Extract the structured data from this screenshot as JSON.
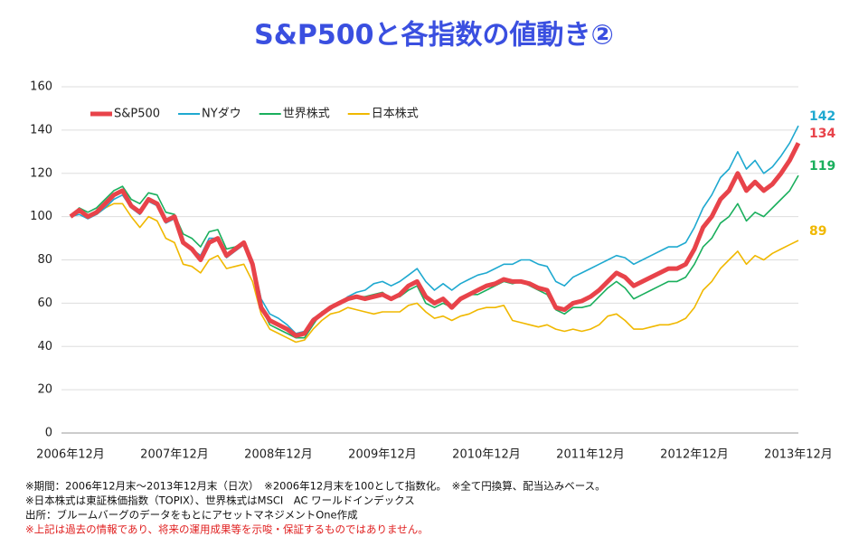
{
  "chart_data": {
    "type": "line",
    "title": "S&P500と各指数の値動き②",
    "categories": [
      "2006年12月",
      null,
      null,
      null,
      null,
      null,
      null,
      null,
      null,
      null,
      null,
      null,
      "2007年12月",
      null,
      null,
      null,
      null,
      null,
      null,
      null,
      null,
      null,
      null,
      null,
      "2008年12月",
      null,
      null,
      null,
      null,
      null,
      null,
      null,
      null,
      null,
      null,
      null,
      "2009年12月",
      null,
      null,
      null,
      null,
      null,
      null,
      null,
      null,
      null,
      null,
      null,
      "2010年12月",
      null,
      null,
      null,
      null,
      null,
      null,
      null,
      null,
      null,
      null,
      null,
      "2011年12月",
      null,
      null,
      null,
      null,
      null,
      null,
      null,
      null,
      null,
      null,
      null,
      "2012年12月",
      null,
      null,
      null,
      null,
      null,
      null,
      null,
      null,
      null,
      null,
      null,
      "2013年12月"
    ],
    "series": [
      {
        "name": "S&P500",
        "color": "#e8434a",
        "values": [
          100,
          103,
          100,
          102,
          106,
          110,
          112,
          105,
          102,
          108,
          106,
          98,
          100,
          88,
          85,
          80,
          88,
          90,
          82,
          85,
          88,
          78,
          58,
          52,
          50,
          48,
          45,
          46,
          52,
          55,
          58,
          60,
          62,
          63,
          62,
          63,
          64,
          62,
          64,
          68,
          70,
          63,
          60,
          62,
          58,
          62,
          64,
          66,
          68,
          69,
          71,
          70,
          70,
          69,
          67,
          66,
          58,
          57,
          60,
          61,
          63,
          66,
          70,
          74,
          72,
          68,
          70,
          72,
          74,
          76,
          76,
          78,
          85,
          95,
          100,
          108,
          112,
          120,
          112,
          116,
          112,
          115,
          120,
          126,
          134
        ]
      },
      {
        "name": "NYダウ",
        "color": "#1fa9d0",
        "values": [
          100,
          101,
          99,
          101,
          104,
          108,
          110,
          104,
          101,
          107,
          105,
          97,
          99,
          88,
          85,
          82,
          90,
          90,
          81,
          84,
          87,
          80,
          62,
          55,
          53,
          50,
          46,
          47,
          53,
          55,
          57,
          60,
          63,
          65,
          66,
          69,
          70,
          68,
          70,
          73,
          76,
          70,
          66,
          69,
          66,
          69,
          71,
          73,
          74,
          76,
          78,
          78,
          80,
          80,
          78,
          77,
          70,
          68,
          72,
          74,
          76,
          78,
          80,
          82,
          81,
          78,
          80,
          82,
          84,
          86,
          86,
          88,
          95,
          104,
          110,
          118,
          122,
          130,
          122,
          126,
          120,
          123,
          128,
          134,
          142
        ]
      },
      {
        "name": "世界株式",
        "color": "#1aaf5d",
        "values": [
          100,
          104,
          102,
          104,
          108,
          112,
          114,
          108,
          106,
          111,
          110,
          102,
          101,
          92,
          90,
          86,
          93,
          94,
          85,
          86,
          88,
          78,
          58,
          50,
          48,
          46,
          44,
          44,
          50,
          56,
          58,
          60,
          62,
          63,
          63,
          64,
          65,
          62,
          63,
          66,
          68,
          60,
          58,
          60,
          58,
          62,
          64,
          64,
          66,
          68,
          70,
          69,
          70,
          68,
          66,
          64,
          57,
          55,
          58,
          58,
          59,
          63,
          67,
          70,
          67,
          62,
          64,
          66,
          68,
          70,
          70,
          72,
          78,
          86,
          90,
          97,
          100,
          106,
          98,
          102,
          100,
          104,
          108,
          112,
          119
        ]
      },
      {
        "name": "日本株式",
        "color": "#f0b800",
        "values": [
          100,
          102,
          100,
          101,
          104,
          106,
          106,
          100,
          95,
          100,
          98,
          90,
          88,
          78,
          77,
          74,
          80,
          82,
          76,
          77,
          78,
          70,
          55,
          48,
          46,
          44,
          42,
          43,
          48,
          52,
          55,
          56,
          58,
          57,
          56,
          55,
          56,
          56,
          56,
          59,
          60,
          56,
          53,
          54,
          52,
          54,
          55,
          57,
          58,
          58,
          59,
          52,
          51,
          50,
          49,
          50,
          48,
          47,
          48,
          47,
          48,
          50,
          54,
          55,
          52,
          48,
          48,
          49,
          50,
          50,
          51,
          53,
          58,
          66,
          70,
          76,
          80,
          84,
          78,
          82,
          80,
          83,
          85,
          87,
          89
        ]
      }
    ],
    "ylim": [
      0,
      160
    ],
    "yticks": [
      0,
      20,
      40,
      60,
      80,
      100,
      120,
      140,
      160
    ],
    "grid": true,
    "legend": "top-left",
    "notes": [
      "※期間：2006年12月末～2013年12月末（日次）　※2006年12月末を100として指数化。　※全て円換算、配当込みベース。",
      "※日本株式は東証株価指数（TOPIX）、世界株式はMSCI　AC ワールドインデックス",
      "出所：ブルームバーグのデータをもとにアセットマネジメントOne作成",
      "※上記は過去の情報であり、将来の運用成果等を示唆・保証するものではありません。"
    ]
  }
}
